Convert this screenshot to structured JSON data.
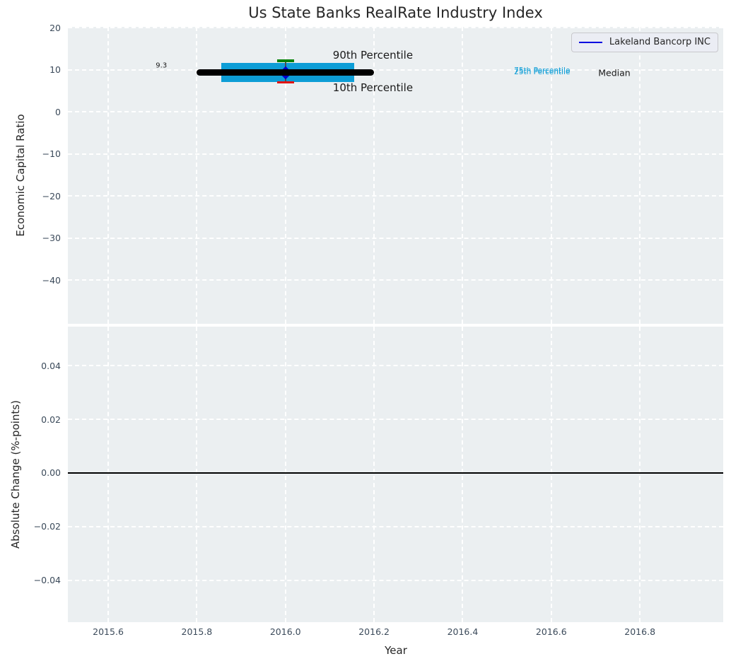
{
  "title": "Us State Banks RealRate Industry Index",
  "colors": {
    "figure_bg": "#ffffff",
    "axes_bg": "#ebeff1",
    "grid": "#ffffff",
    "tick_label": "#3b4a5a",
    "text": "#262626",
    "percentile_band": "#0d9dd6",
    "median": "#000000",
    "p90_cap": "#008000",
    "p10_cap": "#e01414",
    "company_marker": "#0000cc",
    "legend_line": "#0000e0",
    "whisker": "#4d4d4d"
  },
  "chart_data": [
    {
      "type": "line",
      "title": "Us State Banks RealRate Industry Index",
      "ylabel": "Economic Capital Ratio",
      "xlim": [
        2015.509,
        2016.988
      ],
      "ylim": [
        -50.4,
        20.2
      ],
      "grid": true,
      "xticks": [
        2015.6,
        2015.8,
        2016.0,
        2016.2,
        2016.4,
        2016.6,
        2016.8
      ],
      "xtick_labels": [
        "2015.6",
        "2015.8",
        "2016.0",
        "2016.2",
        "2016.4",
        "2016.6",
        "2016.8"
      ],
      "show_xtick_labels": false,
      "yticks": [
        20,
        10,
        0,
        -10,
        -20,
        -30,
        -40
      ],
      "ytick_labels": [
        "20",
        "10",
        "0",
        "−10",
        "−20",
        "−30",
        "−40"
      ],
      "legend": {
        "position": "upper right",
        "entries": [
          {
            "label": "Lakeland Bancorp INC",
            "color": "#0000e0",
            "type": "line"
          }
        ]
      },
      "series": [
        {
          "name": "75th Percentile",
          "type": "hline",
          "color": "#0d9dd6",
          "linewidth": 9,
          "x": [
            2015.855,
            2016.155
          ],
          "y": 10.9,
          "z": 1,
          "rounded": false
        },
        {
          "name": "25th Percentile",
          "type": "hline",
          "color": "#0d9dd6",
          "linewidth": 9,
          "x": [
            2015.855,
            2016.155
          ],
          "y": 7.9,
          "z": 1,
          "rounded": false
        },
        {
          "name": "whisker",
          "type": "vline",
          "color": "#4d4d4d",
          "linewidth": 1.6,
          "x": 2016.0,
          "y": [
            7.0,
            12.1
          ],
          "z": 2
        },
        {
          "name": "Lakeland Bancorp INC",
          "type": "point",
          "marker": "diamond",
          "color": "#0000cc",
          "size": 13,
          "x": 2016.0,
          "y": 9.3,
          "z": 3
        },
        {
          "name": "Median",
          "type": "hline",
          "color": "#000000",
          "linewidth": 9,
          "x": [
            2015.8,
            2016.2
          ],
          "y": 9.3,
          "z": 4,
          "rounded": true
        },
        {
          "name": "90th Percentile cap",
          "type": "cap",
          "color": "#008000",
          "width": 24,
          "linewidth": 3.5,
          "x": 2016.0,
          "y": 12.1,
          "z": 5
        },
        {
          "name": "10th Percentile cap",
          "type": "cap",
          "color": "#e01414",
          "width": 24,
          "linewidth": 3.5,
          "x": 2016.0,
          "y": 7.0,
          "z": 5
        }
      ],
      "annotations": [
        {
          "text": "9.3",
          "x": 2015.72,
          "y": 10.9,
          "color": "#1a1a1a",
          "size": 10,
          "align": "center"
        },
        {
          "text": "90th Percentile",
          "x": 2016.107,
          "y": 13.4,
          "color": "#1a1a1a",
          "size": 15,
          "align": "left"
        },
        {
          "text": "10th Percentile",
          "x": 2016.107,
          "y": 5.7,
          "color": "#1a1a1a",
          "size": 15,
          "align": "left"
        },
        {
          "text": "75th Percentile",
          "x": 2016.516,
          "y": 9.78,
          "color": "#0d9dd6",
          "size": 10.5,
          "align": "left"
        },
        {
          "text": "25th Percentile",
          "x": 2016.516,
          "y": 9.52,
          "color": "#0d9dd6",
          "size": 10.5,
          "align": "left"
        },
        {
          "text": "Median",
          "x": 2016.706,
          "y": 9.2,
          "color": "#1a1a1a",
          "size": 12.5,
          "align": "left"
        }
      ]
    },
    {
      "type": "line",
      "ylabel": "Absolute Change (%-points)",
      "xlabel": "Year",
      "xlim": [
        2015.509,
        2016.988
      ],
      "ylim": [
        -0.0557,
        0.0546
      ],
      "grid": true,
      "xticks": [
        2015.6,
        2015.8,
        2016.0,
        2016.2,
        2016.4,
        2016.6,
        2016.8
      ],
      "xtick_labels": [
        "2015.6",
        "2015.8",
        "2016.0",
        "2016.2",
        "2016.4",
        "2016.6",
        "2016.8"
      ],
      "show_xtick_labels": true,
      "yticks": [
        0.04,
        0.02,
        0.0,
        -0.02,
        -0.04
      ],
      "ytick_labels": [
        "0.04",
        "0.02",
        "0.00",
        "−0.02",
        "−0.04"
      ],
      "series": [
        {
          "name": "zero line",
          "type": "hline",
          "color": "#000000",
          "linewidth": 1.8,
          "x": [
            2015.509,
            2016.988
          ],
          "y": 0.0,
          "z": 2,
          "rounded": false
        }
      ],
      "annotations": []
    }
  ]
}
